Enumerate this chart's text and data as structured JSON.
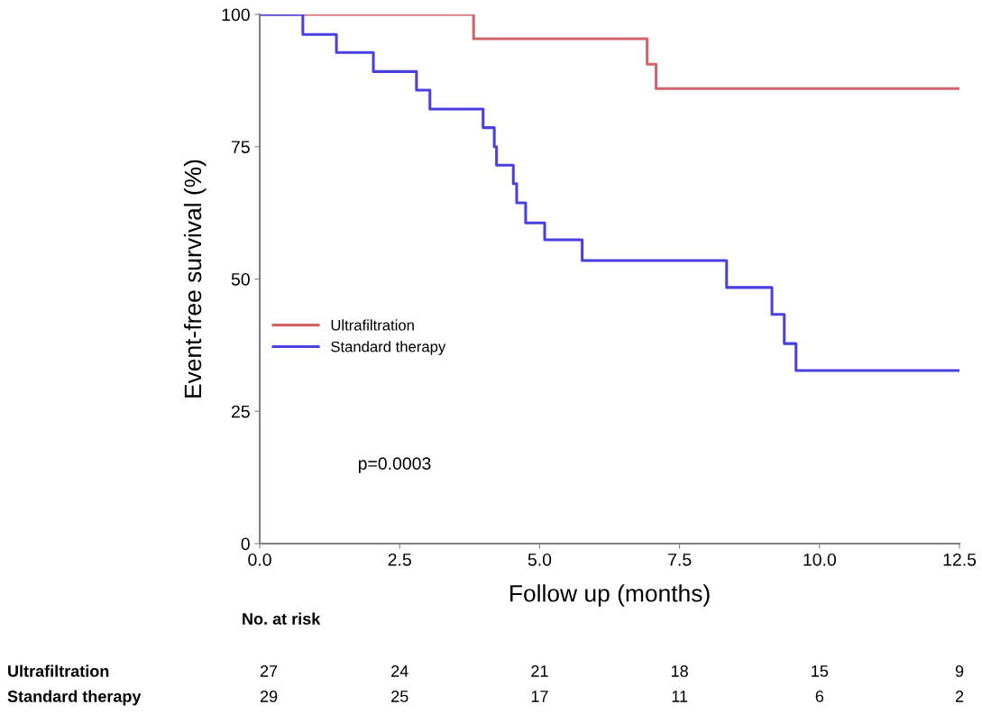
{
  "chart_data": {
    "type": "step",
    "xlabel": "Follow up (months)",
    "ylabel": "Event-free survival (%)",
    "series": [
      {
        "name": "Ultrafiltration",
        "color": "#d0646a",
        "x": [
          0,
          3.82,
          6.92,
          7.08,
          12.5
        ],
        "values": [
          100,
          95.4,
          90.6,
          86.0,
          86.0
        ]
      },
      {
        "name": "Standard therapy",
        "color": "#4a40e0",
        "x": [
          0,
          0.77,
          1.37,
          2.03,
          2.8,
          3.04,
          3.99,
          4.19,
          4.23,
          4.53,
          4.59,
          4.75,
          5.09,
          5.76,
          8.34,
          9.15,
          9.37,
          9.58,
          12.5
        ],
        "values": [
          100,
          96.2,
          92.8,
          89.2,
          85.7,
          82.1,
          78.6,
          75.0,
          71.5,
          68.0,
          64.4,
          60.6,
          57.4,
          53.5,
          48.4,
          43.3,
          37.8,
          32.7,
          32.7
        ]
      }
    ],
    "xlim": [
      0,
      12.5
    ],
    "xticks": [
      {
        "value": 0,
        "label": "0.0"
      },
      2.5,
      {
        "value": 5,
        "label": "5.0"
      },
      7.5,
      {
        "value": 10,
        "label": "10.0"
      },
      12.5
    ],
    "ylim": [
      0,
      100
    ],
    "yticks": [
      0,
      25,
      50,
      75,
      100
    ],
    "grid": false,
    "legend": "center left",
    "annotations": [
      "p=0.0003",
      "No. at risk",
      "Ultrafiltration",
      "27",
      "24",
      "21",
      "18",
      "15",
      "9",
      "Standard therapy",
      "29",
      "25",
      "17",
      "11",
      "6",
      "2"
    ]
  }
}
